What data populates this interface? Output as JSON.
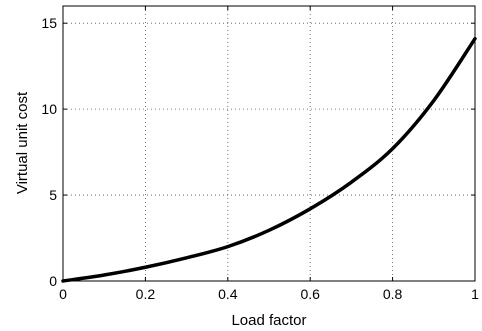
{
  "chart_data": {
    "type": "line",
    "title": "",
    "xlabel": "Load factor",
    "ylabel": "Virtual unit cost",
    "xlim": [
      0,
      1
    ],
    "ylim": [
      0,
      16
    ],
    "xticks": [
      0,
      0.2,
      0.4,
      0.6,
      0.8,
      1
    ],
    "xtick_labels": [
      "0",
      "0.2",
      "0.4",
      "0.6",
      "0.8",
      "1"
    ],
    "yticks": [
      0,
      5,
      10,
      15
    ],
    "ytick_labels": [
      "0",
      "5",
      "10",
      "15"
    ],
    "grid": true,
    "series": [
      {
        "color": "#000000",
        "x": [
          0,
          0.1,
          0.2,
          0.3,
          0.4,
          0.5,
          0.6,
          0.7,
          0.8,
          0.9,
          1.0
        ],
        "y": [
          0,
          0.35,
          0.8,
          1.35,
          2.0,
          2.95,
          4.2,
          5.75,
          7.7,
          10.5,
          14.1
        ]
      }
    ]
  }
}
